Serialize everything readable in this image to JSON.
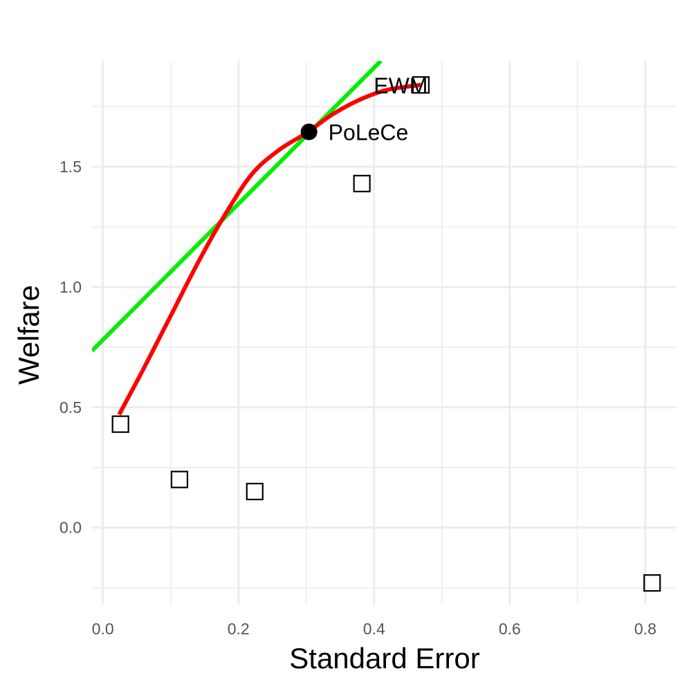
{
  "chart_data": {
    "type": "scatter",
    "xlabel": "Standard Error",
    "ylabel": "Welfare",
    "xlim": [
      -0.016,
      0.845
    ],
    "ylim": [
      -0.32,
      1.94
    ],
    "x_ticks": [
      0.0,
      0.2,
      0.4,
      0.6,
      0.8
    ],
    "x_tick_labels": [
      "0.0",
      "0.2",
      "0.4",
      "0.6",
      "0.8"
    ],
    "x_minor_ticks": [
      0.1,
      0.3,
      0.5,
      0.7
    ],
    "y_ticks": [
      0.0,
      0.5,
      1.0,
      1.5
    ],
    "y_tick_labels": [
      "0.0",
      "0.5",
      "1.0",
      "1.5"
    ],
    "y_minor_ticks": [
      -0.25,
      0.25,
      0.75,
      1.25,
      1.75
    ],
    "grid": true,
    "points": [
      {
        "x": 0.026,
        "y": 0.43,
        "shape": "square",
        "label": ""
      },
      {
        "x": 0.113,
        "y": 0.2,
        "shape": "square",
        "label": ""
      },
      {
        "x": 0.224,
        "y": 0.15,
        "shape": "square",
        "label": ""
      },
      {
        "x": 0.382,
        "y": 1.43,
        "shape": "square",
        "label": ""
      },
      {
        "x": 0.469,
        "y": 1.84,
        "shape": "square",
        "label": "EWM"
      },
      {
        "x": 0.81,
        "y": -0.23,
        "shape": "square",
        "label": ""
      },
      {
        "x": 0.304,
        "y": 1.645,
        "shape": "circle",
        "label": "PoLeCe"
      }
    ],
    "lines": [
      {
        "color": "#00ee00",
        "x": [
          -0.016,
          0.41
        ],
        "y": [
          0.735,
          1.94
        ]
      },
      {
        "color": "#ff0000",
        "x": [
          0.024,
          0.06,
          0.1,
          0.14,
          0.18,
          0.22,
          0.26,
          0.3,
          0.34,
          0.38,
          0.42,
          0.469
        ],
        "y": [
          0.47,
          0.66,
          0.88,
          1.1,
          1.3,
          1.47,
          1.57,
          1.64,
          1.72,
          1.78,
          1.82,
          1.84
        ]
      }
    ],
    "colors": {
      "grid": "#ebebeb",
      "green_line": "#00ee00",
      "red_line": "#ff0000"
    }
  }
}
